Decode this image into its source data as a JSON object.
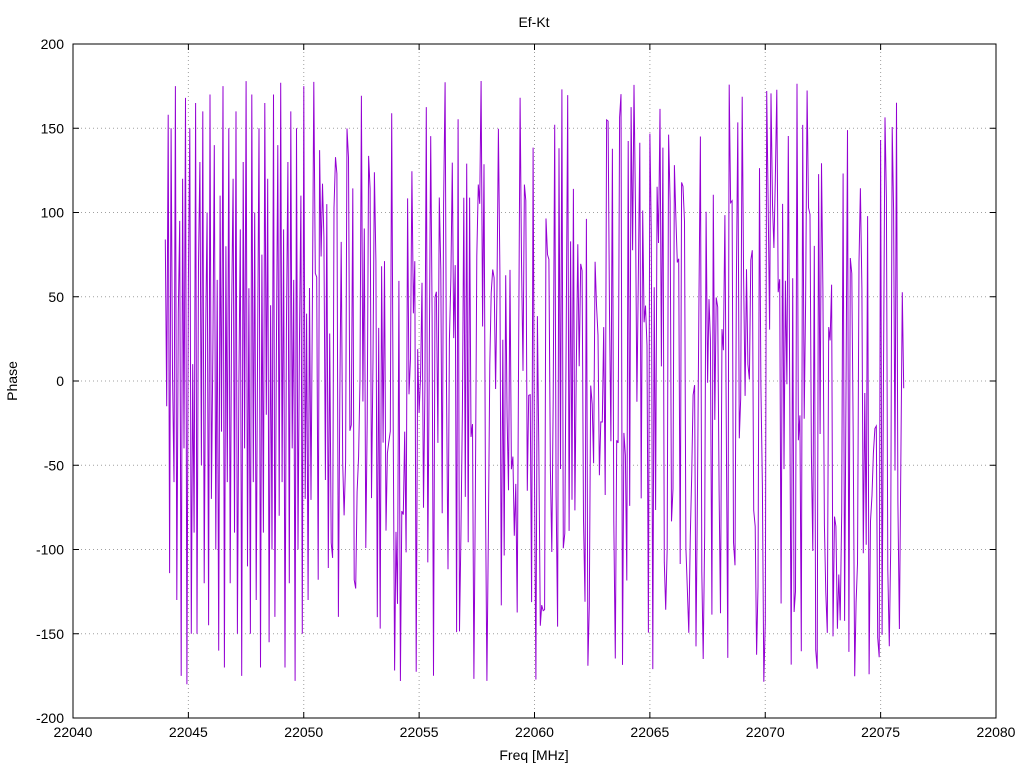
{
  "chart_data": {
    "type": "line",
    "title": "Ef-Kt",
    "xlabel": "Freq [MHz]",
    "ylabel": "Phase",
    "xlim": [
      22040,
      22080
    ],
    "ylim": [
      -200,
      200
    ],
    "xticks": [
      22040,
      22045,
      22050,
      22055,
      22060,
      22065,
      22070,
      22075,
      22080
    ],
    "yticks": [
      -200,
      -150,
      -100,
      -50,
      0,
      50,
      100,
      150,
      200
    ],
    "grid": true,
    "series": [
      {
        "color": "#9400d3",
        "x_range": [
          22044.0,
          22076.0
        ],
        "points_per_mhz": 16,
        "y_sample": [
          84,
          -15,
          158,
          -114,
          150,
          5,
          -60,
          175,
          -130,
          40,
          95,
          -175,
          120,
          -40,
          168,
          -180,
          60,
          150,
          -150,
          10,
          -90,
          165,
          -150,
          70,
          130,
          -50,
          160,
          -120,
          30,
          100,
          -145,
          170,
          -70,
          20,
          140,
          -100,
          60,
          -160,
          110,
          -30,
          175,
          -170,
          80,
          -60,
          150,
          -120,
          40,
          120,
          -90,
          160,
          -150,
          0,
          90,
          -175,
          130,
          -40,
          178,
          -110,
          55,
          -150,
          170,
          -60,
          100,
          -130,
          20,
          150,
          -170,
          75,
          -90,
          165,
          -20,
          120,
          -155,
          45,
          -100,
          170,
          -140,
          10,
          140,
          -80,
          177,
          -60,
          90,
          -170,
          30,
          130,
          -120,
          160,
          -40,
          60,
          -178,
          150,
          -100,
          20,
          110,
          -150,
          175,
          -70,
          40,
          -130
        ],
        "y_min": -180,
        "y_max": 179
      }
    ]
  }
}
